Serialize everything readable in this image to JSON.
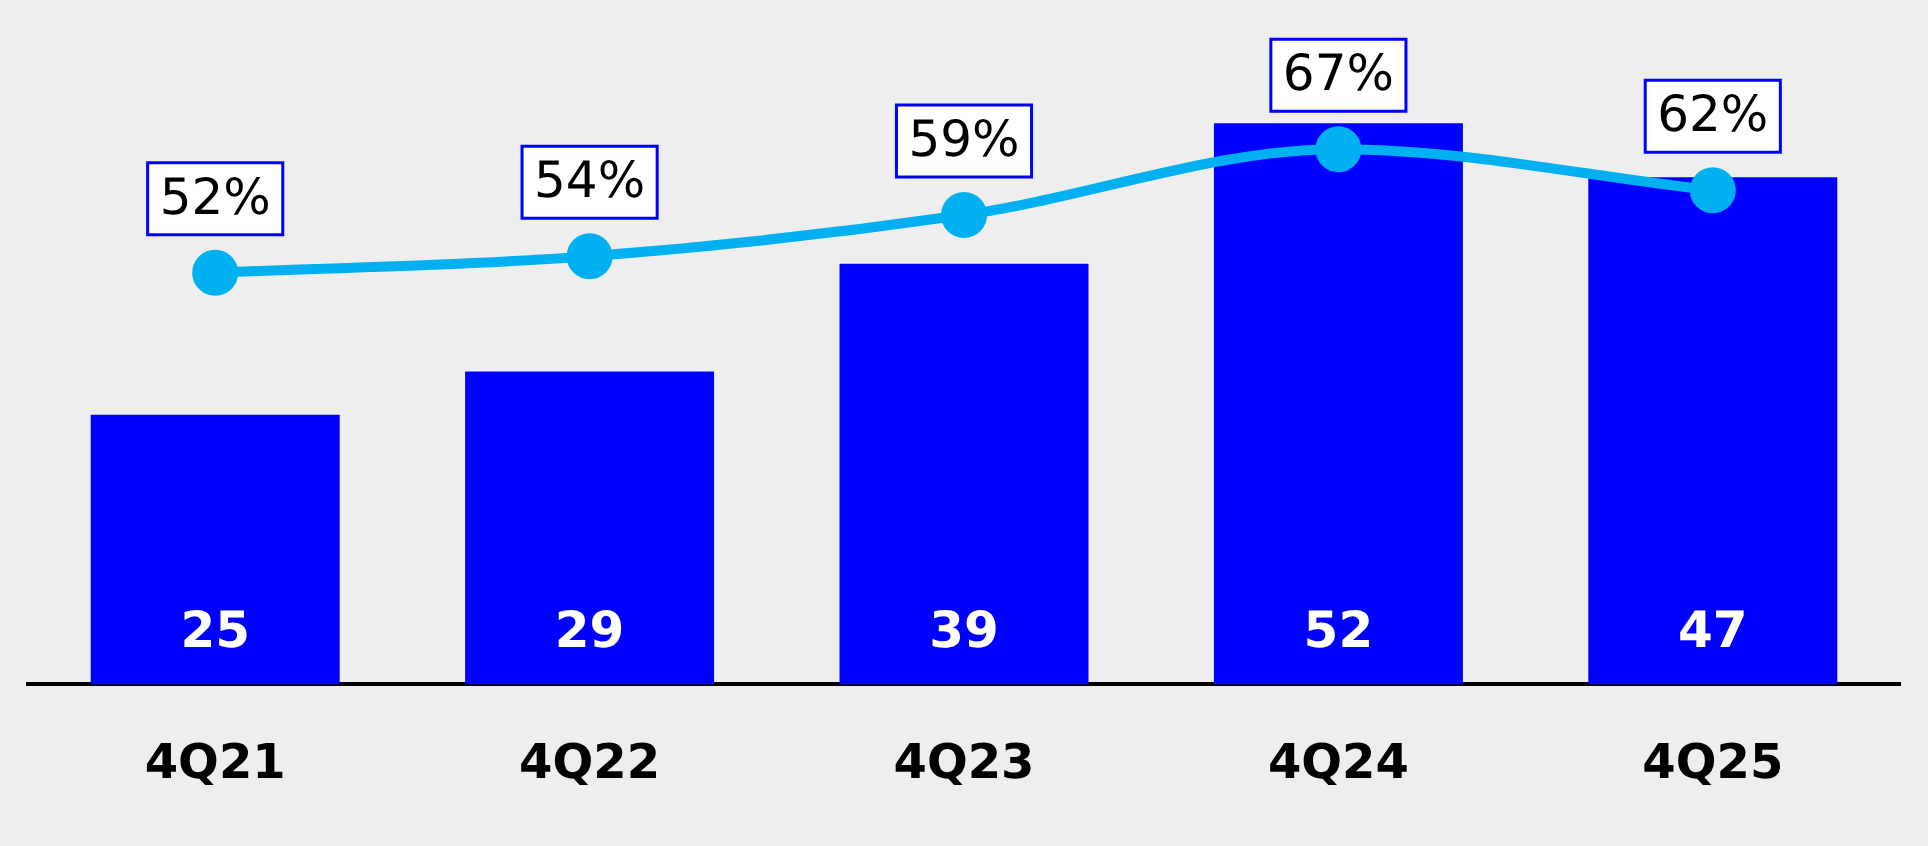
{
  "chart_data": {
    "type": "bar",
    "categories": [
      "4Q21",
      "4Q22",
      "4Q23",
      "4Q24",
      "4Q25"
    ],
    "marker": "circle",
    "series": [
      {
        "color": "#0000ff",
        "values": [
          25,
          29,
          39,
          52,
          47
        ],
        "value_labels": [
          "25",
          "29",
          "39",
          "52",
          "47"
        ]
      },
      {
        "type": "line",
        "axis": "y2",
        "color": "#00b0f0",
        "values": [
          52,
          54,
          59,
          67,
          62
        ],
        "value_labels": [
          "52%",
          "54%",
          "59%",
          "67%",
          "62%"
        ]
      }
    ]
  }
}
